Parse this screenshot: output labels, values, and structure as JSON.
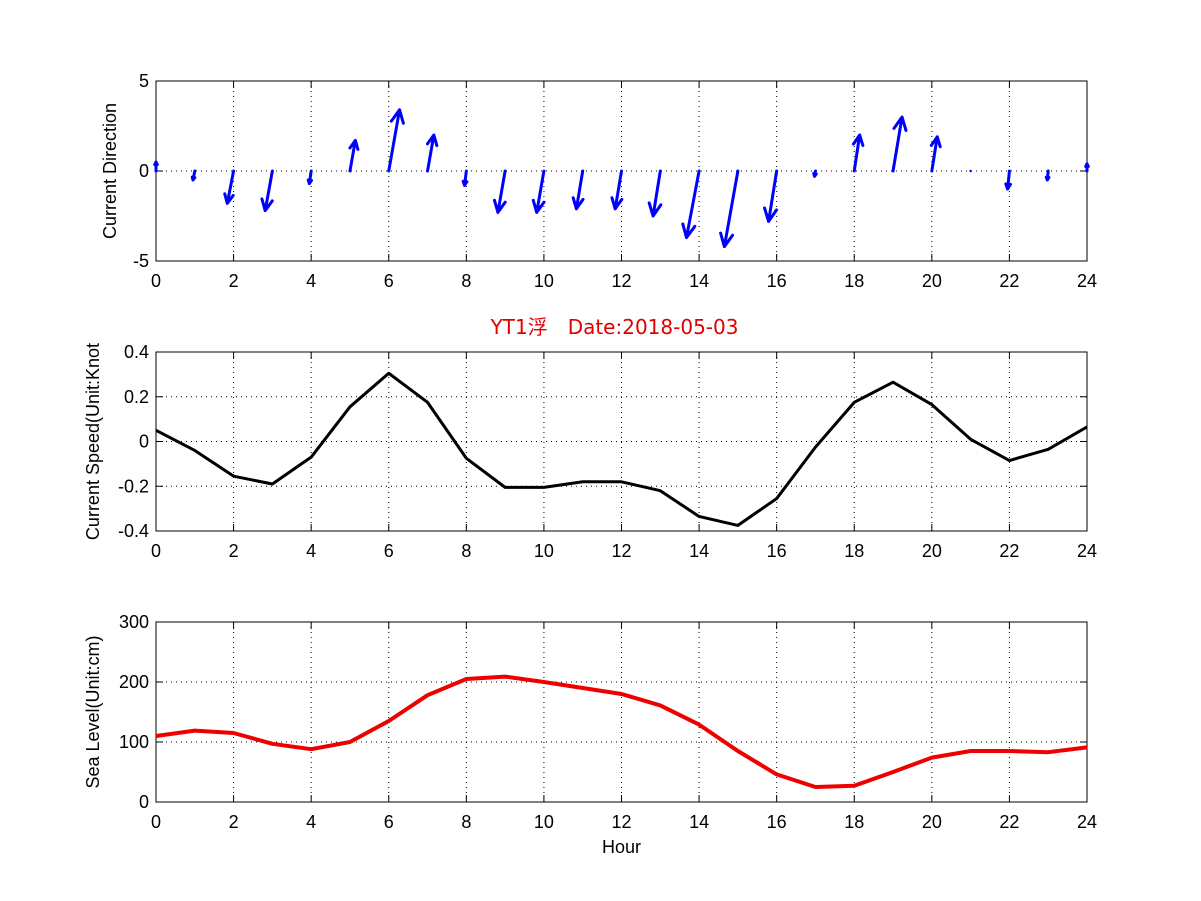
{
  "chart_data": [
    {
      "type": "quiver",
      "title": "",
      "xlabel": "",
      "ylabel": "Current Direction",
      "xlim": [
        0,
        24
      ],
      "ylim": [
        -5,
        5
      ],
      "xticks": [
        0,
        2,
        4,
        6,
        8,
        10,
        12,
        14,
        16,
        18,
        20,
        22,
        24
      ],
      "yticks": [
        -5,
        0,
        5
      ],
      "grid": true,
      "color": "#0000ff",
      "vectors": [
        {
          "x": 0,
          "u": 0.0,
          "v": 0.5
        },
        {
          "x": 1,
          "u": -0.1,
          "v": -0.5
        },
        {
          "x": 2,
          "u": -0.35,
          "v": -1.8
        },
        {
          "x": 3,
          "u": -0.4,
          "v": -2.2
        },
        {
          "x": 4,
          "u": -0.1,
          "v": -0.7
        },
        {
          "x": 5,
          "u": 0.3,
          "v": 1.7
        },
        {
          "x": 6,
          "u": 0.6,
          "v": 3.4
        },
        {
          "x": 7,
          "u": 0.35,
          "v": 2.0
        },
        {
          "x": 8,
          "u": -0.1,
          "v": -0.8
        },
        {
          "x": 9,
          "u": -0.4,
          "v": -2.3
        },
        {
          "x": 10,
          "u": -0.4,
          "v": -2.3
        },
        {
          "x": 11,
          "u": -0.35,
          "v": -2.1
        },
        {
          "x": 12,
          "u": -0.35,
          "v": -2.1
        },
        {
          "x": 13,
          "u": -0.4,
          "v": -2.5
        },
        {
          "x": 14,
          "u": -0.7,
          "v": -3.7
        },
        {
          "x": 15,
          "u": -0.75,
          "v": -4.2
        },
        {
          "x": 16,
          "u": -0.45,
          "v": -2.8
        },
        {
          "x": 17,
          "u": -0.05,
          "v": -0.3
        },
        {
          "x": 18,
          "u": 0.3,
          "v": 2.0
        },
        {
          "x": 19,
          "u": 0.5,
          "v": 3.0
        },
        {
          "x": 20,
          "u": 0.3,
          "v": 1.9
        },
        {
          "x": 21,
          "u": 0.0,
          "v": 0.0
        },
        {
          "x": 22,
          "u": -0.1,
          "v": -1.0
        },
        {
          "x": 23,
          "u": -0.05,
          "v": -0.5
        },
        {
          "x": 24,
          "u": 0.0,
          "v": 0.4
        }
      ]
    },
    {
      "type": "line",
      "title": "YT1浮　Date:2018-05-03",
      "xlabel": "",
      "ylabel": "Current Speed(Unit:Knot",
      "xlim": [
        0,
        24
      ],
      "ylim": [
        -0.4,
        0.4
      ],
      "xticks": [
        0,
        2,
        4,
        6,
        8,
        10,
        12,
        14,
        16,
        18,
        20,
        22,
        24
      ],
      "yticks": [
        -0.4,
        -0.2,
        0,
        0.2,
        0.4
      ],
      "grid": true,
      "series": [
        {
          "color": "#000000",
          "x": [
            0,
            1,
            2,
            3,
            4,
            5,
            6,
            7,
            8,
            9,
            10,
            11,
            12,
            13,
            14,
            15,
            16,
            17,
            18,
            19,
            20,
            21,
            22,
            23,
            24
          ],
          "values": [
            0.05,
            -0.04,
            -0.155,
            -0.19,
            -0.07,
            0.155,
            0.305,
            0.175,
            -0.075,
            -0.205,
            -0.205,
            -0.18,
            -0.18,
            -0.22,
            -0.335,
            -0.375,
            -0.255,
            -0.025,
            0.175,
            0.265,
            0.165,
            0.01,
            -0.085,
            -0.035,
            0.065
          ]
        }
      ]
    },
    {
      "type": "line",
      "title": "",
      "xlabel": "Hour",
      "ylabel": "Sea Level(Unit:cm)",
      "xlim": [
        0,
        24
      ],
      "ylim": [
        0,
        300
      ],
      "xticks": [
        0,
        2,
        4,
        6,
        8,
        10,
        12,
        14,
        16,
        18,
        20,
        22,
        24
      ],
      "yticks": [
        0,
        100,
        200,
        300
      ],
      "grid": true,
      "series": [
        {
          "color": "#ee0000",
          "x": [
            0,
            1,
            2,
            3,
            4,
            5,
            6,
            7,
            8,
            9,
            10,
            11,
            12,
            13,
            14,
            15,
            16,
            17,
            18,
            19,
            20,
            21,
            22,
            23,
            24
          ],
          "values": [
            110,
            119,
            115,
            97,
            88,
            100,
            135,
            178,
            205,
            209,
            200,
            190,
            180,
            161,
            129,
            85,
            46,
            25,
            27,
            50,
            74,
            85,
            85,
            83,
            91
          ]
        }
      ]
    }
  ]
}
